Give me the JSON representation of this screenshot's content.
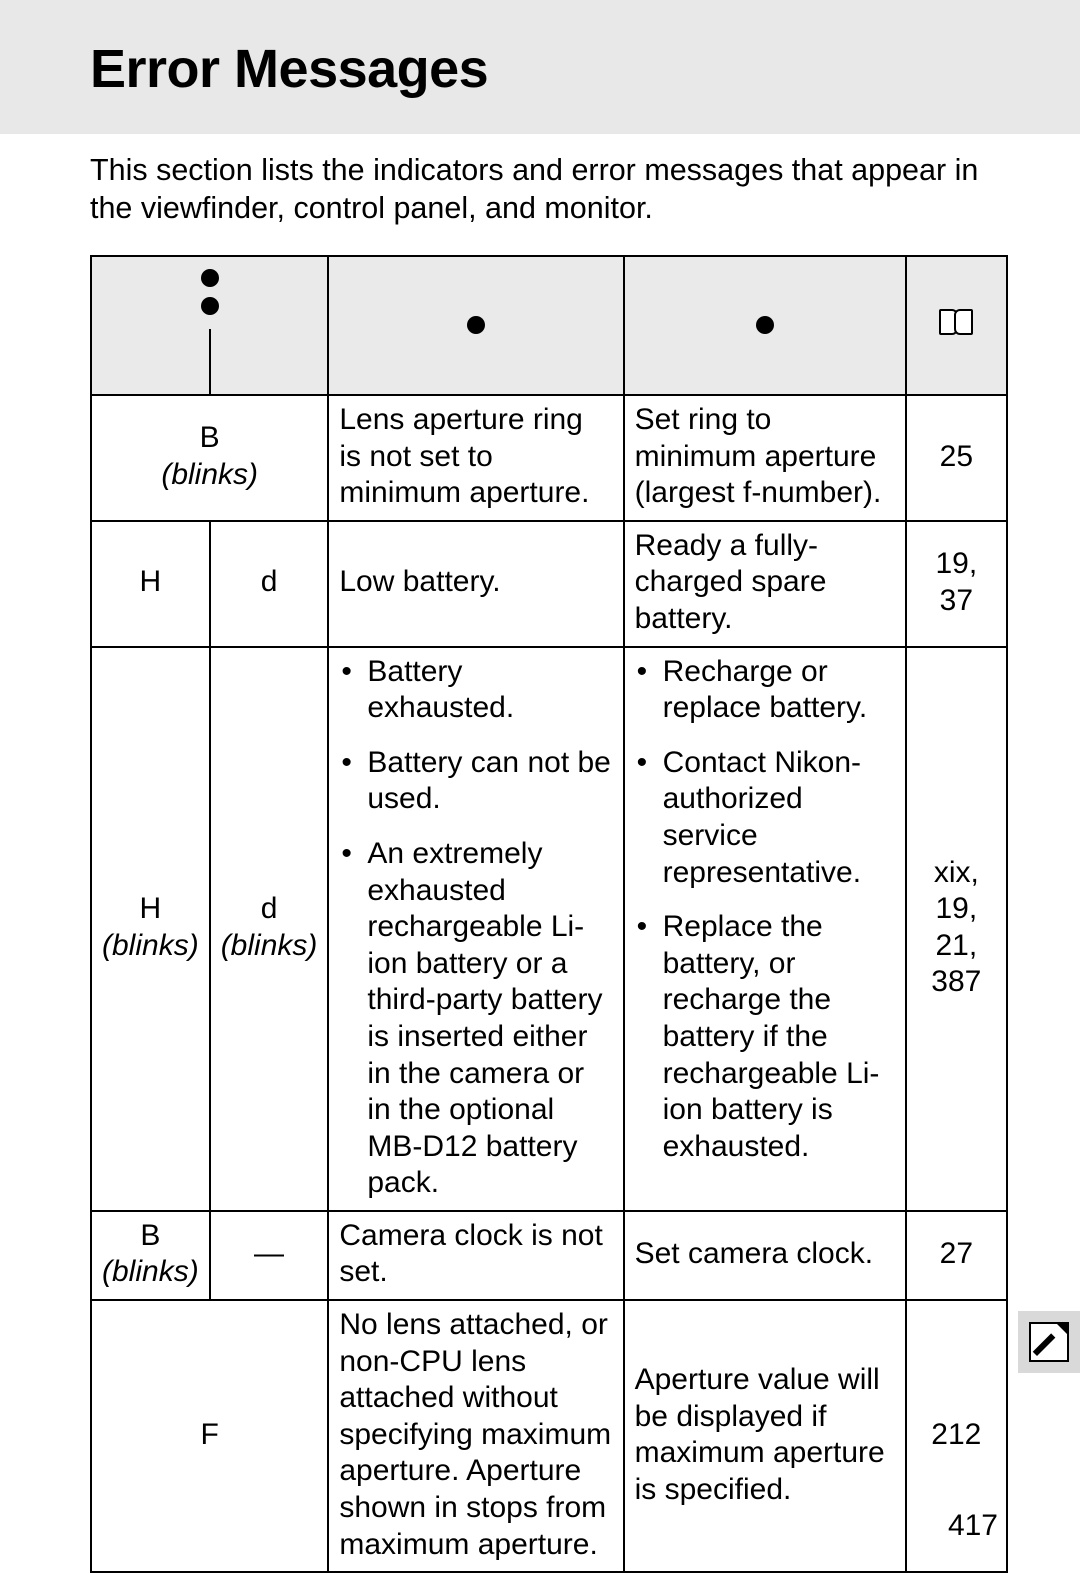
{
  "page": {
    "title": "Error Messages",
    "intro": "This section lists the indicators and error messages that appear in the viewfinder, control panel, and monitor.",
    "page_number": "417"
  },
  "table": {
    "header": {
      "indicator_icon_a": "control-panel-icon",
      "indicator_icon_b": "viewfinder-icon",
      "problem_icon": "problem-icon",
      "solution_icon": "solution-icon",
      "reference_icon": "book-icon"
    },
    "rows": [
      {
        "ind_a": "B",
        "ind_a_note": "(blinks)",
        "ind_merged": true,
        "problem": "Lens aperture ring is not set to minimum aperture.",
        "solution": "Set ring to minimum aperture (largest f-number).",
        "ref": "25"
      },
      {
        "ind_a": "H",
        "ind_b": "d",
        "problem": "Low battery.",
        "solution": "Ready a fully-charged spare battery.",
        "ref": "19, 37"
      },
      {
        "ind_a": "H",
        "ind_a_note": "(blinks)",
        "ind_b": "d",
        "ind_b_note": "(blinks)",
        "problem_list": [
          "Battery exhausted.",
          "Battery can not be used.",
          "An extremely exhausted rechargeable Li-ion battery or a third-party battery is inserted either in the camera or in the optional MB-D12 battery pack."
        ],
        "solution_list": [
          "Recharge or replace battery.",
          "Contact Nikon-authorized service representative.",
          "Replace the battery, or recharge the battery if the rechargeable Li-ion battery is exhausted."
        ],
        "ref": "xix, 19, 21, 387"
      },
      {
        "ind_a": "B",
        "ind_a_note": "(blinks)",
        "ind_b": "—",
        "problem": "Camera clock is not set.",
        "solution": "Set camera clock.",
        "ref": "27"
      },
      {
        "ind_a": "F",
        "ind_merged": true,
        "problem": "No lens attached, or non-CPU lens attached without specifying maximum aperture. Aperture shown in stops from maximum aperture.",
        "solution": "Aperture value will be displayed if maximum aperture is specified.",
        "ref": "212"
      }
    ]
  },
  "colors": {
    "header_band_bg": "#e8e8e8",
    "shaded_cell_bg": "#eaeaea",
    "text": "#000000",
    "page_bg": "#ffffff",
    "side_tab_bg": "#d9d9d9"
  }
}
